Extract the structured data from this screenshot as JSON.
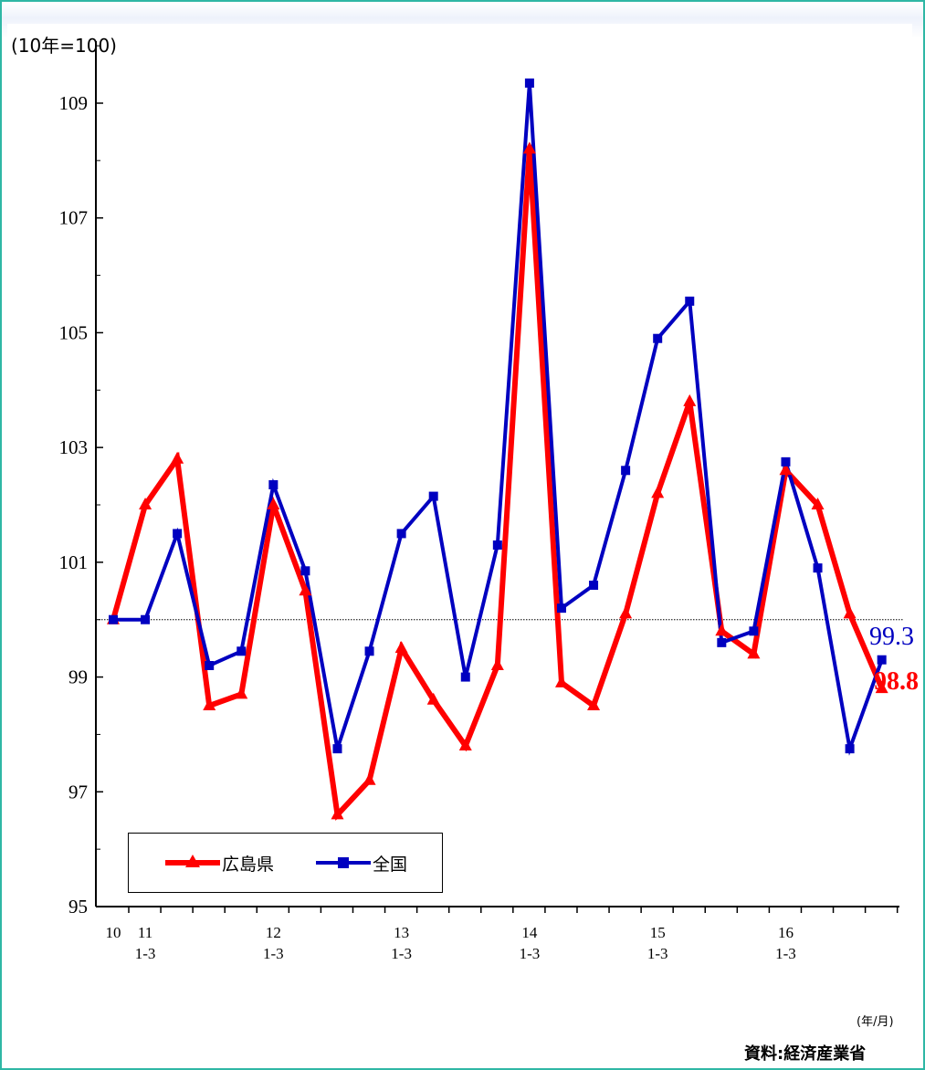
{
  "unit_label": "(10年=100)",
  "x_unit_label": "(年/月)",
  "source": "資料:経済産業省",
  "colors": {
    "hiroshima": "#ff0000",
    "national": "#0000c0",
    "axis": "#000000",
    "frame": "#2fb7a5"
  },
  "chart_data": {
    "type": "line",
    "ylim": [
      95,
      110
    ],
    "yticks": [
      95,
      97,
      99,
      101,
      103,
      105,
      107,
      109
    ],
    "reference_line": 100,
    "x_tick_labels": [
      {
        "index": 0,
        "lines": [
          "10"
        ]
      },
      {
        "index": 1,
        "lines": [
          "11",
          "1-3"
        ]
      },
      {
        "index": 5,
        "lines": [
          "12",
          "1-3"
        ]
      },
      {
        "index": 9,
        "lines": [
          "13",
          "1-3"
        ]
      },
      {
        "index": 13,
        "lines": [
          "14",
          "1-3"
        ]
      },
      {
        "index": 17,
        "lines": [
          "15",
          "1-3"
        ]
      },
      {
        "index": 21,
        "lines": [
          "16",
          "1-3"
        ]
      }
    ],
    "series": [
      {
        "name": "広島県",
        "marker": "triangle",
        "values": [
          100.0,
          102.0,
          102.8,
          98.5,
          98.7,
          102.0,
          100.5,
          96.6,
          97.2,
          99.5,
          98.6,
          97.8,
          99.2,
          108.2,
          98.9,
          98.5,
          100.1,
          102.2,
          103.8,
          99.8,
          99.4,
          102.6,
          102.0,
          100.1,
          98.8
        ]
      },
      {
        "name": "全国",
        "marker": "square",
        "values": [
          100.0,
          100.0,
          101.5,
          99.2,
          99.45,
          102.35,
          100.85,
          97.75,
          99.45,
          101.5,
          102.15,
          99.0,
          101.3,
          109.35,
          100.2,
          100.6,
          102.6,
          104.9,
          105.55,
          99.6,
          99.8,
          102.75,
          100.9,
          97.75,
          99.3
        ]
      }
    ],
    "end_labels": [
      {
        "series": "全国",
        "text": "99.3"
      },
      {
        "series": "広島県",
        "text": "98.8"
      }
    ]
  }
}
